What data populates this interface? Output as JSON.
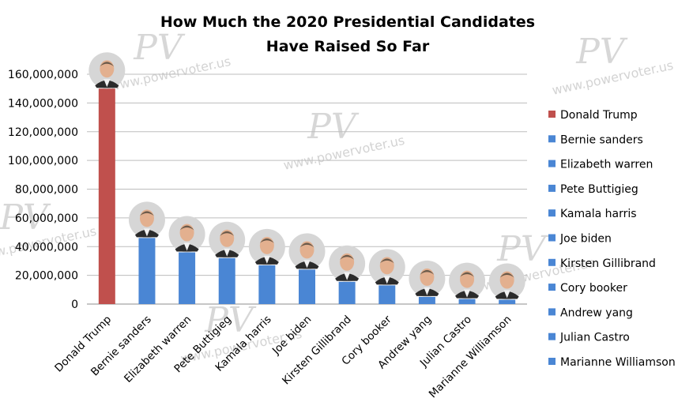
{
  "chart_data": {
    "type": "bar",
    "title": [
      "How Much the 2020 Presidential Candidates",
      "Have Raised So Far"
    ],
    "categories": [
      "Donald Trump",
      "Bernie sanders",
      "Elizabeth warren",
      "Pete Buttigieg",
      "Kamala harris",
      "Joe biden",
      "Kirsten Gillibrand",
      "Cory booker",
      "Andrew yang",
      "Julian Castro",
      "Marianne Williamson"
    ],
    "values": [
      150000000,
      46000000,
      36000000,
      32000000,
      27000000,
      24000000,
      15500000,
      13000000,
      5000000,
      3500000,
      3000000
    ],
    "colors": [
      "#c0504d",
      "#4a86d4",
      "#4a86d4",
      "#4a86d4",
      "#4a86d4",
      "#4a86d4",
      "#4a86d4",
      "#4a86d4",
      "#4a86d4",
      "#4a86d4",
      "#4a86d4"
    ],
    "yticks": [
      "0",
      "20,000,000",
      "40,000,000",
      "60,000,000",
      "80,000,000",
      "100,000,000",
      "120,000,000",
      "140,000,000",
      "160,000,000"
    ],
    "ylim": [
      0,
      160000000
    ],
    "grid": true,
    "legend": "right",
    "xlabel": "",
    "ylabel": ""
  },
  "watermark": {
    "text": "www.powervoter.us",
    "logo": "PV"
  }
}
